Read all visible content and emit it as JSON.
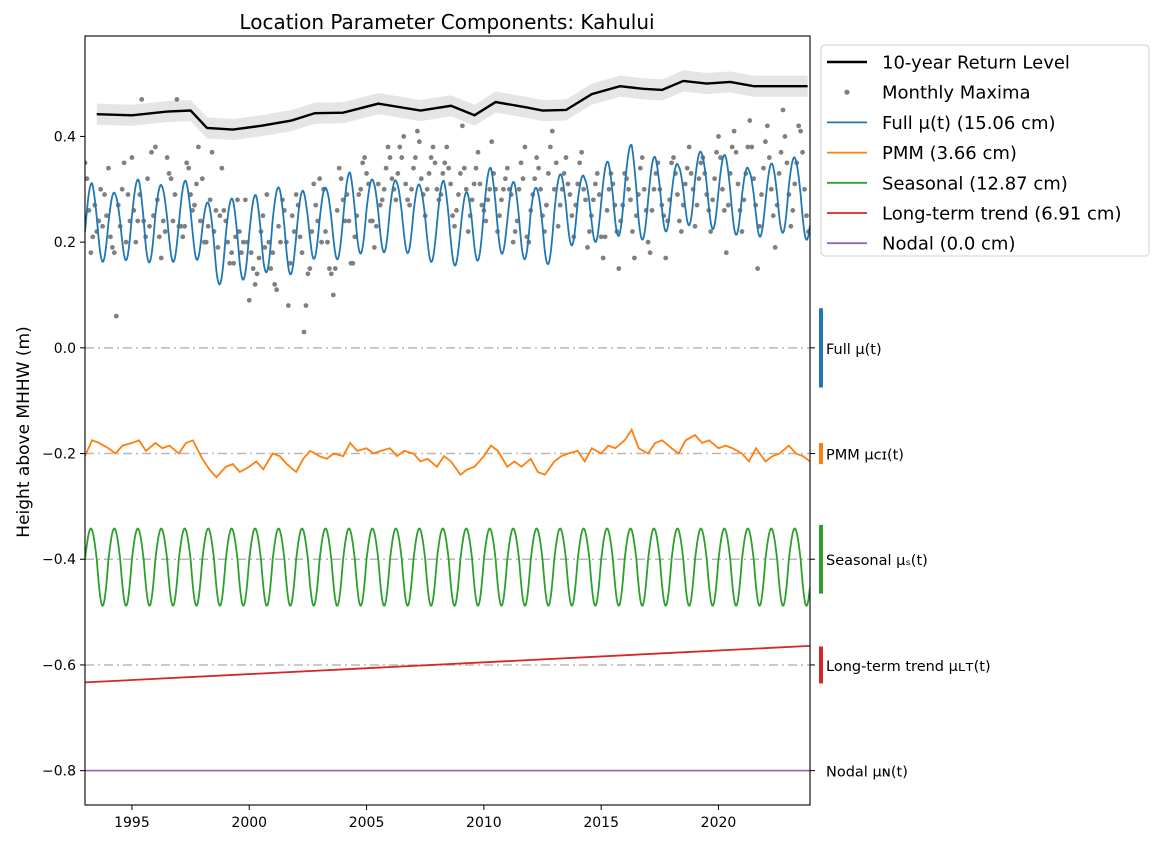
{
  "chart_data": {
    "type": "line",
    "title": "Location Parameter Components: Kahului",
    "xlabel": "",
    "ylabel": "Height above MHHW (m)",
    "xlim": [
      1993.0,
      2023.9
    ],
    "ylim": [
      -0.865,
      0.59
    ],
    "x_ticks": [
      1995,
      2000,
      2005,
      2010,
      2015,
      2020
    ],
    "x_tick_labels": [
      "1995",
      "2000",
      "2005",
      "2010",
      "2015",
      "2020"
    ],
    "y_ticks": [
      0.4,
      0.2,
      0.0,
      -0.2,
      -0.4,
      -0.6,
      -0.8
    ],
    "y_tick_labels": [
      "0.4",
      "0.2",
      "0.0",
      "−0.2",
      "−0.4",
      "−0.6",
      "−0.8"
    ],
    "grid": false,
    "legend_position": "upper right, outside plot",
    "legend": [
      {
        "label": "10-year Return Level",
        "color": "#000000",
        "style": "line-thick"
      },
      {
        "label": "Monthly Maxima",
        "color": "#808080",
        "style": "dot"
      },
      {
        "label": "Full μ(t) (15.06 cm)",
        "color": "#1f77b4",
        "style": "line"
      },
      {
        "label": "PMM (3.66 cm)",
        "color": "#ff7f0e",
        "style": "line"
      },
      {
        "label": "Seasonal (12.87 cm)",
        "color": "#2ca02c",
        "style": "line"
      },
      {
        "label": "Long-term trend (6.91 cm)",
        "color": "#d62728",
        "style": "line"
      },
      {
        "label": "Nodal (0.0 cm)",
        "color": "#9467bd",
        "style": "line"
      }
    ],
    "component_labels": [
      {
        "text": "Full μ(t)",
        "y": 0.0,
        "color": "#1f77b4",
        "half_range": 0.075
      },
      {
        "text": "PMM μᴄɪ(t)",
        "y": -0.2,
        "color": "#ff7f0e",
        "half_range": 0.02
      },
      {
        "text": "Seasonal μₛ(t)",
        "y": -0.4,
        "color": "#2ca02c",
        "half_range": 0.065
      },
      {
        "text": "Long-term trend μʟᴛ(t)",
        "y": -0.6,
        "color": "#d62728",
        "half_range": 0.035
      },
      {
        "text": "Nodal μɴ(t)",
        "y": -0.8,
        "color": "#9467bd",
        "half_range": 0.0
      }
    ],
    "baselines": [
      0.0,
      -0.2,
      -0.4,
      -0.6
    ],
    "return_level": {
      "name": "10-year Return Level",
      "x": [
        1993.5,
        1995.0,
        1996.5,
        1997.5,
        1998.2,
        1999.3,
        2000.5,
        2001.8,
        2002.8,
        2004.0,
        2005.5,
        2007.3,
        2008.6,
        2009.6,
        2010.5,
        2011.8,
        2012.5,
        2013.5,
        2014.6,
        2015.8,
        2016.8,
        2017.6,
        2018.5,
        2019.5,
        2020.5,
        2021.5,
        2023.8
      ],
      "values": [
        0.442,
        0.44,
        0.447,
        0.449,
        0.416,
        0.413,
        0.42,
        0.43,
        0.444,
        0.445,
        0.462,
        0.449,
        0.458,
        0.44,
        0.465,
        0.455,
        0.449,
        0.45,
        0.48,
        0.495,
        0.49,
        0.488,
        0.505,
        0.5,
        0.503,
        0.495,
        0.495
      ],
      "band_halfwidth": 0.02
    },
    "monthly_maxima": {
      "name": "Monthly Maxima",
      "start": 1993.0,
      "step_months": 1,
      "values": [
        0.35,
        0.32,
        0.26,
        0.18,
        0.21,
        0.27,
        0.22,
        0.24,
        0.3,
        0.23,
        0.29,
        0.25,
        0.34,
        0.21,
        0.19,
        0.18,
        0.06,
        0.27,
        0.23,
        0.3,
        0.35,
        0.2,
        0.29,
        0.24,
        0.36,
        0.26,
        0.2,
        0.24,
        0.29,
        0.47,
        0.24,
        0.21,
        0.32,
        0.23,
        0.37,
        0.25,
        0.38,
        0.28,
        0.21,
        0.17,
        0.24,
        0.22,
        0.36,
        0.33,
        0.32,
        0.24,
        0.29,
        0.47,
        0.23,
        0.23,
        0.21,
        0.23,
        0.35,
        0.34,
        0.29,
        0.26,
        0.27,
        0.31,
        0.38,
        0.24,
        0.32,
        0.2,
        0.2,
        0.23,
        0.28,
        0.37,
        0.22,
        0.26,
        0.19,
        0.25,
        0.34,
        0.26,
        0.24,
        0.2,
        0.16,
        0.18,
        0.16,
        0.21,
        0.28,
        0.22,
        0.18,
        0.2,
        0.28,
        0.2,
        0.09,
        0.18,
        0.15,
        0.12,
        0.14,
        0.17,
        0.22,
        0.25,
        0.19,
        0.29,
        0.2,
        0.15,
        0.18,
        0.12,
        0.11,
        0.23,
        0.2,
        0.28,
        0.26,
        0.2,
        0.08,
        0.16,
        0.25,
        0.22,
        0.29,
        0.27,
        0.21,
        0.18,
        0.03,
        0.08,
        0.14,
        0.15,
        0.22,
        0.31,
        0.27,
        0.24,
        0.32,
        0.2,
        0.3,
        0.22,
        0.2,
        0.15,
        0.14,
        0.1,
        0.15,
        0.26,
        0.34,
        0.32,
        0.28,
        0.24,
        0.29,
        0.24,
        0.16,
        0.16,
        0.21,
        0.25,
        0.29,
        0.3,
        0.35,
        0.36,
        0.33,
        0.31,
        0.24,
        0.24,
        0.19,
        0.23,
        0.31,
        0.27,
        0.28,
        0.3,
        0.34,
        0.38,
        0.36,
        0.32,
        0.3,
        0.28,
        0.33,
        0.38,
        0.36,
        0.4,
        0.31,
        0.28,
        0.27,
        0.3,
        0.34,
        0.36,
        0.41,
        0.39,
        0.32,
        0.29,
        0.25,
        0.3,
        0.33,
        0.36,
        0.38,
        0.35,
        0.3,
        0.28,
        0.29,
        0.33,
        0.35,
        0.38,
        0.34,
        0.31,
        0.25,
        0.23,
        0.26,
        0.29,
        0.33,
        0.42,
        0.34,
        0.3,
        0.22,
        0.25,
        0.28,
        0.31,
        0.34,
        0.37,
        0.31,
        0.27,
        0.26,
        0.24,
        0.28,
        0.3,
        0.39,
        0.33,
        0.3,
        0.22,
        0.25,
        0.28,
        0.3,
        0.32,
        0.34,
        0.3,
        0.29,
        0.2,
        0.22,
        0.24,
        0.3,
        0.35,
        0.32,
        0.38,
        0.21,
        0.2,
        0.26,
        0.29,
        0.32,
        0.36,
        0.34,
        0.3,
        0.25,
        0.22,
        0.27,
        0.33,
        0.38,
        0.41,
        0.3,
        0.35,
        0.23,
        0.27,
        0.3,
        0.33,
        0.36,
        0.31,
        0.29,
        0.25,
        0.21,
        0.27,
        0.31,
        0.35,
        0.37,
        0.3,
        0.28,
        0.19,
        0.22,
        0.25,
        0.28,
        0.31,
        0.33,
        0.29,
        0.21,
        0.17,
        0.21,
        0.26,
        0.3,
        0.33,
        0.31,
        0.27,
        0.22,
        0.15,
        0.24,
        0.27,
        0.33,
        0.32,
        0.3,
        0.28,
        0.22,
        0.17,
        0.25,
        0.29,
        0.34,
        0.36,
        0.3,
        0.26,
        0.2,
        0.18,
        0.26,
        0.3,
        0.33,
        0.35,
        0.3,
        0.27,
        0.25,
        0.17,
        0.24,
        0.28,
        0.35,
        0.36,
        0.33,
        0.29,
        0.24,
        0.22,
        0.27,
        0.31,
        0.34,
        0.38,
        0.33,
        0.3,
        0.23,
        0.27,
        0.32,
        0.35,
        0.36,
        0.33,
        0.29,
        0.26,
        0.22,
        0.28,
        0.32,
        0.37,
        0.4,
        0.36,
        0.3,
        0.26,
        0.18,
        0.27,
        0.33,
        0.38,
        0.41,
        0.37,
        0.31,
        0.26,
        0.22,
        0.28,
        0.33,
        0.38,
        0.43,
        0.38,
        0.32,
        0.27,
        0.15,
        0.23,
        0.29,
        0.34,
        0.39,
        0.42,
        0.36,
        0.3,
        0.25,
        0.19,
        0.27,
        0.33,
        0.37,
        0.45,
        0.4,
        0.35,
        0.29,
        0.23,
        0.26,
        0.31,
        0.35,
        0.42,
        0.41,
        0.37,
        0.3,
        0.25,
        0.22,
        0.28,
        0.33,
        0.39,
        0.4,
        0.37,
        0.31,
        0.24,
        0.2,
        0.27,
        0.33,
        0.38,
        0.4,
        0.36,
        0.32,
        0.25,
        0.15,
        0.25,
        0.31,
        0.36,
        0.45,
        0.35,
        0.29,
        0.23,
        0.17,
        0.27,
        0.34,
        0.37,
        0.39,
        0.36,
        0.29,
        0.24,
        0.16,
        0.21,
        0.3,
        0.35,
        0.43,
        0.38,
        0.33
      ]
    },
    "full_mu": {
      "name": "Full μ(t)",
      "base": 0.225,
      "trend_per_year": 0.00226,
      "amplitude": 0.064,
      "pmm_scale": 1.0
    },
    "pmm": {
      "name": "PMM",
      "offset": -0.2,
      "x": [
        1993.0,
        1993.3,
        1993.6,
        1994.0,
        1994.3,
        1994.6,
        1995.0,
        1995.3,
        1995.6,
        1996.0,
        1996.3,
        1996.6,
        1997.0,
        1997.3,
        1997.6,
        1998.0,
        1998.3,
        1998.6,
        1999.0,
        1999.3,
        1999.6,
        2000.0,
        2000.3,
        2000.6,
        2001.0,
        2001.3,
        2001.6,
        2002.0,
        2002.3,
        2002.6,
        2003.0,
        2003.3,
        2003.6,
        2004.0,
        2004.3,
        2004.6,
        2005.0,
        2005.3,
        2005.6,
        2006.0,
        2006.3,
        2006.6,
        2007.0,
        2007.3,
        2007.6,
        2008.0,
        2008.3,
        2008.6,
        2009.0,
        2009.3,
        2009.6,
        2010.0,
        2010.3,
        2010.6,
        2011.0,
        2011.3,
        2011.6,
        2012.0,
        2012.3,
        2012.6,
        2013.0,
        2013.3,
        2013.6,
        2014.0,
        2014.3,
        2014.6,
        2015.0,
        2015.3,
        2015.6,
        2016.0,
        2016.3,
        2016.6,
        2017.0,
        2017.3,
        2017.6,
        2018.0,
        2018.3,
        2018.6,
        2019.0,
        2019.3,
        2019.6,
        2020.0,
        2020.3,
        2020.6,
        2021.0,
        2021.3,
        2021.6,
        2022.0,
        2022.3,
        2022.6,
        2023.0,
        2023.3,
        2023.6,
        2023.9
      ],
      "values": [
        -0.205,
        -0.175,
        -0.18,
        -0.19,
        -0.2,
        -0.185,
        -0.18,
        -0.175,
        -0.195,
        -0.18,
        -0.19,
        -0.185,
        -0.2,
        -0.18,
        -0.175,
        -0.21,
        -0.23,
        -0.245,
        -0.225,
        -0.22,
        -0.235,
        -0.225,
        -0.215,
        -0.23,
        -0.2,
        -0.205,
        -0.22,
        -0.235,
        -0.21,
        -0.195,
        -0.205,
        -0.21,
        -0.2,
        -0.205,
        -0.18,
        -0.195,
        -0.19,
        -0.2,
        -0.195,
        -0.19,
        -0.205,
        -0.195,
        -0.2,
        -0.215,
        -0.21,
        -0.225,
        -0.205,
        -0.215,
        -0.24,
        -0.23,
        -0.225,
        -0.205,
        -0.185,
        -0.195,
        -0.225,
        -0.215,
        -0.225,
        -0.21,
        -0.235,
        -0.24,
        -0.215,
        -0.205,
        -0.2,
        -0.195,
        -0.215,
        -0.19,
        -0.2,
        -0.185,
        -0.19,
        -0.175,
        -0.155,
        -0.19,
        -0.2,
        -0.18,
        -0.175,
        -0.19,
        -0.2,
        -0.175,
        -0.165,
        -0.18,
        -0.175,
        -0.19,
        -0.185,
        -0.19,
        -0.2,
        -0.215,
        -0.19,
        -0.215,
        -0.205,
        -0.2,
        -0.185,
        -0.2,
        -0.205,
        -0.215
      ]
    },
    "seasonal": {
      "name": "Seasonal",
      "offset": -0.4,
      "amplitude_up": 0.058,
      "amplitude_down": 0.088,
      "period_years": 1.0
    },
    "trend": {
      "name": "Long-term trend",
      "x": [
        1993.0,
        2023.9
      ],
      "values": [
        -0.633,
        -0.564
      ]
    },
    "nodal": {
      "name": "Nodal",
      "x": [
        1993.0,
        2023.9
      ],
      "values": [
        -0.8,
        -0.8
      ]
    }
  }
}
